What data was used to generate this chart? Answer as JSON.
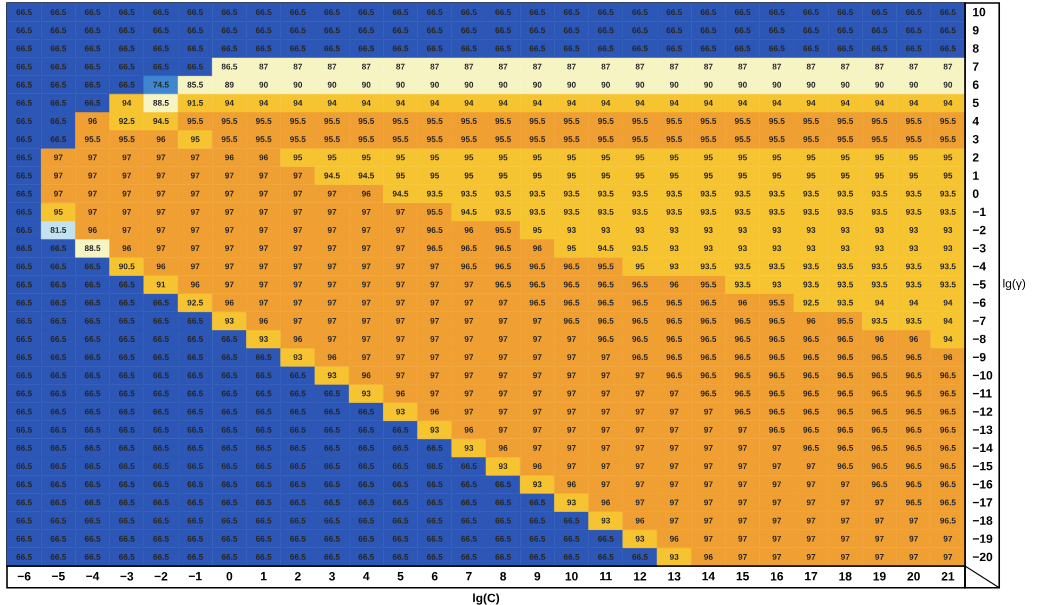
{
  "chart_data": {
    "type": "heatmap",
    "data_labels": true,
    "xlabel": "lg(C)",
    "ylabel": "lg(γ)",
    "categories": [
      "−6",
      "−5",
      "−4",
      "−3",
      "−2",
      "−1",
      "0",
      "1",
      "2",
      "3",
      "4",
      "5",
      "6",
      "7",
      "8",
      "9",
      "10",
      "11",
      "12",
      "13",
      "14",
      "15",
      "16",
      "17",
      "18",
      "19",
      "20",
      "21"
    ],
    "y_categories": [
      "10",
      "9",
      "8",
      "7",
      "6",
      "5",
      "4",
      "3",
      "2",
      "1",
      "0",
      "−1",
      "−2",
      "−3",
      "−4",
      "−5",
      "−6",
      "−7",
      "−8",
      "−9",
      "−10",
      "−11",
      "−12",
      "−13",
      "−14",
      "−15",
      "−16",
      "−17",
      "−18",
      "−19",
      "−20"
    ],
    "cells": [
      [
        66.5,
        66.5,
        66.5,
        66.5,
        66.5,
        66.5,
        66.5,
        66.5,
        66.5,
        66.5,
        66.5,
        66.5,
        66.5,
        66.5,
        66.5,
        66.5,
        66.5,
        66.5,
        66.5,
        66.5,
        66.5,
        66.5,
        66.5,
        66.5,
        66.5,
        66.5,
        66.5,
        66.5
      ],
      [
        66.5,
        66.5,
        66.5,
        66.5,
        66.5,
        66.5,
        66.5,
        66.5,
        66.5,
        66.5,
        66.5,
        66.5,
        66.5,
        66.5,
        66.5,
        66.5,
        66.5,
        66.5,
        66.5,
        66.5,
        66.5,
        66.5,
        66.5,
        66.5,
        66.5,
        66.5,
        66.5,
        66.5
      ],
      [
        66.5,
        66.5,
        66.5,
        66.5,
        66.5,
        66.5,
        66.5,
        66.5,
        66.5,
        66.5,
        66.5,
        66.5,
        66.5,
        66.5,
        66.5,
        66.5,
        66.5,
        66.5,
        66.5,
        66.5,
        66.5,
        66.5,
        66.5,
        66.5,
        66.5,
        66.5,
        66.5,
        66.5
      ],
      [
        66.5,
        66.5,
        66.5,
        66.5,
        66.5,
        66.5,
        86.5,
        87,
        87,
        87,
        87,
        87,
        87,
        87,
        87,
        87,
        87,
        87,
        87,
        87,
        87,
        87,
        87,
        87,
        87,
        87,
        87,
        87
      ],
      [
        66.5,
        66.5,
        66.5,
        66.5,
        74.5,
        85.5,
        89,
        90,
        90,
        90,
        90,
        90,
        90,
        90,
        90,
        90,
        90,
        90,
        90,
        90,
        90,
        90,
        90,
        90,
        90,
        90,
        90,
        90
      ],
      [
        66.5,
        66.5,
        66.5,
        94,
        88.5,
        91.5,
        94,
        94,
        94,
        94,
        94,
        94,
        94,
        94,
        94,
        94,
        94,
        94,
        94,
        94,
        94,
        94,
        94,
        94,
        94,
        94,
        94,
        94
      ],
      [
        66.5,
        66.5,
        96,
        92.5,
        94.5,
        95.5,
        95.5,
        95.5,
        95.5,
        95.5,
        95.5,
        95.5,
        95.5,
        95.5,
        95.5,
        95.5,
        95.5,
        95.5,
        95.5,
        95.5,
        95.5,
        95.5,
        95.5,
        95.5,
        95.5,
        95.5,
        95.5,
        95.5
      ],
      [
        66.5,
        66.5,
        95.5,
        95.5,
        96,
        95,
        95.5,
        95.5,
        95.5,
        95.5,
        95.5,
        95.5,
        95.5,
        95.5,
        95.5,
        95.5,
        95.5,
        95.5,
        95.5,
        95.5,
        95.5,
        95.5,
        95.5,
        95.5,
        95.5,
        95.5,
        95.5,
        95.5
      ],
      [
        66.5,
        97,
        97,
        97,
        97,
        97,
        96,
        96,
        95,
        95,
        95,
        95,
        95,
        95,
        95,
        95,
        95,
        95,
        95,
        95,
        95,
        95,
        95,
        95,
        95,
        95,
        95,
        95
      ],
      [
        66.5,
        97,
        97,
        97,
        97,
        97,
        97,
        97,
        97,
        94.5,
        94.5,
        95,
        95,
        95,
        95,
        95,
        95,
        95,
        95,
        95,
        95,
        95,
        95,
        95,
        95,
        95,
        95,
        95
      ],
      [
        66.5,
        97,
        97,
        97,
        97,
        97,
        97,
        97,
        97,
        97,
        96,
        94.5,
        93.5,
        93.5,
        93.5,
        93.5,
        93.5,
        93.5,
        93.5,
        93.5,
        93.5,
        93.5,
        93.5,
        93.5,
        93.5,
        93.5,
        93.5,
        93.5
      ],
      [
        66.5,
        95,
        97,
        97,
        97,
        97,
        97,
        97,
        97,
        97,
        97,
        97,
        95.5,
        94.5,
        93.5,
        93.5,
        93.5,
        93.5,
        93.5,
        93.5,
        93.5,
        93.5,
        93.5,
        93.5,
        93.5,
        93.5,
        93.5,
        93.5
      ],
      [
        66.5,
        81.5,
        96,
        97,
        97,
        97,
        97,
        97,
        97,
        97,
        97,
        97,
        96.5,
        96,
        95.5,
        95,
        93,
        93,
        93,
        93,
        93,
        93,
        93,
        93,
        93,
        93,
        93,
        93
      ],
      [
        66.5,
        66.5,
        88.5,
        96,
        97,
        97,
        97,
        97,
        97,
        97,
        97,
        97,
        96.5,
        96.5,
        96.5,
        96,
        95,
        94.5,
        93.5,
        93,
        93,
        93,
        93,
        93,
        93,
        93,
        93,
        93
      ],
      [
        66.5,
        66.5,
        66.5,
        90.5,
        96,
        97,
        97,
        97,
        97,
        97,
        97,
        97,
        97,
        96.5,
        96.5,
        96.5,
        96.5,
        95.5,
        95,
        93,
        93.5,
        93.5,
        93.5,
        93.5,
        93.5,
        93.5,
        93.5,
        93.5
      ],
      [
        66.5,
        66.5,
        66.5,
        66.5,
        91,
        96,
        97,
        97,
        97,
        97,
        97,
        97,
        97,
        97,
        96.5,
        96.5,
        96.5,
        96.5,
        96.5,
        96,
        95.5,
        93.5,
        93,
        93.5,
        93.5,
        93.5,
        93.5,
        93.5
      ],
      [
        66.5,
        66.5,
        66.5,
        66.5,
        66.5,
        92.5,
        96,
        97,
        97,
        97,
        97,
        97,
        97,
        97,
        97,
        96.5,
        96.5,
        96.5,
        96.5,
        96.5,
        96.5,
        96,
        95.5,
        92.5,
        93.5,
        94,
        94,
        94
      ],
      [
        66.5,
        66.5,
        66.5,
        66.5,
        66.5,
        66.5,
        93,
        96,
        97,
        97,
        97,
        97,
        97,
        97,
        97,
        97,
        96.5,
        96.5,
        96.5,
        96.5,
        96.5,
        96.5,
        96.5,
        96,
        95.5,
        93.5,
        93.5,
        94
      ],
      [
        66.5,
        66.5,
        66.5,
        66.5,
        66.5,
        66.5,
        66.5,
        93,
        96,
        97,
        97,
        97,
        97,
        97,
        97,
        97,
        97,
        96.5,
        96.5,
        96.5,
        96.5,
        96.5,
        96.5,
        96.5,
        96.5,
        96,
        96,
        94
      ],
      [
        66.5,
        66.5,
        66.5,
        66.5,
        66.5,
        66.5,
        66.5,
        66.5,
        93,
        96,
        97,
        97,
        97,
        97,
        97,
        97,
        97,
        97,
        96.5,
        96.5,
        96.5,
        96.5,
        96.5,
        96.5,
        96.5,
        96.5,
        96.5,
        96
      ],
      [
        66.5,
        66.5,
        66.5,
        66.5,
        66.5,
        66.5,
        66.5,
        66.5,
        66.5,
        93,
        96,
        97,
        97,
        97,
        97,
        97,
        97,
        97,
        97,
        96.5,
        96.5,
        96.5,
        96.5,
        96.5,
        96.5,
        96.5,
        96.5,
        96.5
      ],
      [
        66.5,
        66.5,
        66.5,
        66.5,
        66.5,
        66.5,
        66.5,
        66.5,
        66.5,
        66.5,
        93,
        96,
        97,
        97,
        97,
        97,
        97,
        97,
        97,
        97,
        96.5,
        96.5,
        96.5,
        96.5,
        96.5,
        96.5,
        96.5,
        96.5
      ],
      [
        66.5,
        66.5,
        66.5,
        66.5,
        66.5,
        66.5,
        66.5,
        66.5,
        66.5,
        66.5,
        66.5,
        93,
        96,
        97,
        97,
        97,
        97,
        97,
        97,
        97,
        97,
        96.5,
        96.5,
        96.5,
        96.5,
        96.5,
        96.5,
        96.5
      ],
      [
        66.5,
        66.5,
        66.5,
        66.5,
        66.5,
        66.5,
        66.5,
        66.5,
        66.5,
        66.5,
        66.5,
        66.5,
        93,
        96,
        97,
        97,
        97,
        97,
        97,
        97,
        97,
        97,
        96.5,
        96.5,
        96.5,
        96.5,
        96.5,
        96.5
      ],
      [
        66.5,
        66.5,
        66.5,
        66.5,
        66.5,
        66.5,
        66.5,
        66.5,
        66.5,
        66.5,
        66.5,
        66.5,
        66.5,
        93,
        96,
        97,
        97,
        97,
        97,
        97,
        97,
        97,
        97,
        96.5,
        96.5,
        96.5,
        96.5,
        96.5
      ],
      [
        66.5,
        66.5,
        66.5,
        66.5,
        66.5,
        66.5,
        66.5,
        66.5,
        66.5,
        66.5,
        66.5,
        66.5,
        66.5,
        66.5,
        93,
        96,
        97,
        97,
        97,
        97,
        97,
        97,
        97,
        97,
        96.5,
        96.5,
        96.5,
        96.5
      ],
      [
        66.5,
        66.5,
        66.5,
        66.5,
        66.5,
        66.5,
        66.5,
        66.5,
        66.5,
        66.5,
        66.5,
        66.5,
        66.5,
        66.5,
        66.5,
        93,
        96,
        97,
        97,
        97,
        97,
        97,
        97,
        97,
        97,
        96.5,
        96.5,
        96.5
      ],
      [
        66.5,
        66.5,
        66.5,
        66.5,
        66.5,
        66.5,
        66.5,
        66.5,
        66.5,
        66.5,
        66.5,
        66.5,
        66.5,
        66.5,
        66.5,
        66.5,
        93,
        96,
        97,
        97,
        97,
        97,
        97,
        97,
        97,
        97,
        96.5,
        96.5
      ],
      [
        66.5,
        66.5,
        66.5,
        66.5,
        66.5,
        66.5,
        66.5,
        66.5,
        66.5,
        66.5,
        66.5,
        66.5,
        66.5,
        66.5,
        66.5,
        66.5,
        66.5,
        93,
        96,
        97,
        97,
        97,
        97,
        97,
        97,
        97,
        97,
        96.5
      ],
      [
        66.5,
        66.5,
        66.5,
        66.5,
        66.5,
        66.5,
        66.5,
        66.5,
        66.5,
        66.5,
        66.5,
        66.5,
        66.5,
        66.5,
        66.5,
        66.5,
        66.5,
        66.5,
        93,
        96,
        97,
        97,
        97,
        97,
        97,
        97,
        97,
        97
      ],
      [
        66.5,
        66.5,
        66.5,
        66.5,
        66.5,
        66.5,
        66.5,
        66.5,
        66.5,
        66.5,
        66.5,
        66.5,
        66.5,
        66.5,
        66.5,
        66.5,
        66.5,
        66.5,
        66.5,
        93,
        96,
        97,
        97,
        97,
        97,
        97,
        97,
        97
      ]
    ]
  }
}
